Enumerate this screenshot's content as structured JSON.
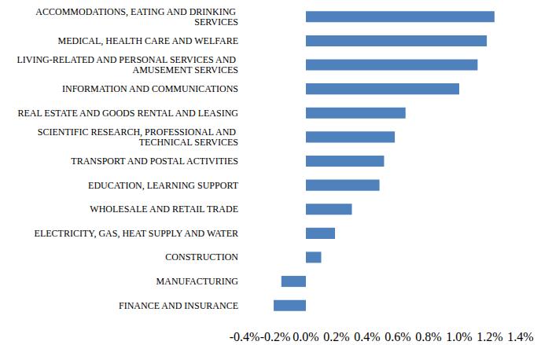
{
  "chart_data": {
    "type": "bar",
    "orientation": "horizontal",
    "categories": [
      "ACCOMMODATIONS, EATING AND DRINKING SERVICES",
      "MEDICAL, HEALTH CARE AND WELFARE",
      "LIVING-RELATED AND PERSONAL SERVICES AND AMUSEMENT SERVICES",
      "INFORMATION AND COMMUNICATIONS",
      "REAL ESTATE AND GOODS RENTAL AND LEASING",
      "SCIENTIFIC RESEARCH, PROFESSIONAL AND TECHNICAL SERVICES",
      "TRANSPORT AND POSTAL ACTIVITIES",
      "EDUCATION, LEARNING SUPPORT",
      "WHOLESALE AND RETAIL TRADE",
      "ELECTRICITY, GAS, HEAT SUPPLY AND WATER",
      "CONSTRUCTION",
      "MANUFACTURING",
      "FINANCE AND INSURANCE"
    ],
    "values": [
      1.23,
      1.18,
      1.12,
      1.0,
      0.65,
      0.58,
      0.51,
      0.48,
      0.3,
      0.19,
      0.1,
      -0.16,
      -0.21
    ],
    "color": "#4f81bd",
    "xlim": [
      -0.4,
      1.4
    ],
    "xticks": [
      {
        "value": -0.4,
        "label": "-0.4%"
      },
      {
        "value": -0.2,
        "label": "-0.2%"
      },
      {
        "value": 0,
        "label": "0.0%"
      },
      {
        "value": 0.2,
        "label": "0.2%"
      },
      {
        "value": 0.4,
        "label": "0.4%"
      },
      {
        "value": 0.6,
        "label": "0.6%"
      },
      {
        "value": 0.8,
        "label": "0.8%"
      },
      {
        "value": 1.0,
        "label": "1.0%"
      },
      {
        "value": 1.2,
        "label": "1.2%"
      },
      {
        "value": 1.4,
        "label": "1.4%"
      }
    ],
    "grid": false
  }
}
